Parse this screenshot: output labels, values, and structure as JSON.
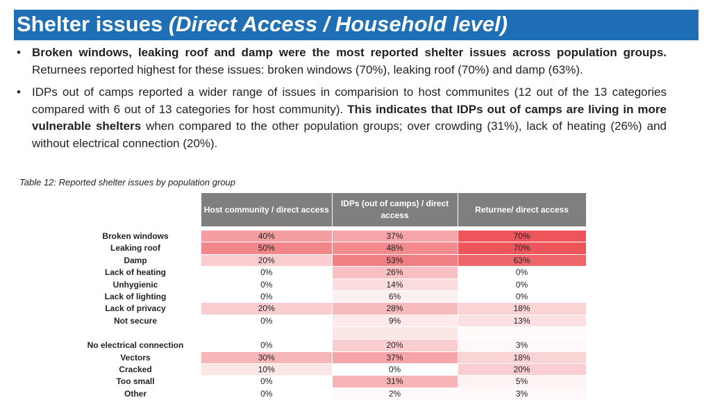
{
  "header": {
    "title_plain": "Shelter issues ",
    "title_italic": "(Direct Access / Household level)"
  },
  "bullets": [
    {
      "bold": "Broken windows, leaking roof and damp were the most reported shelter issues across population groups.",
      "rest": " Returnees reported highest for these issues: broken windows (70%), leaking roof (70%) and damp (63%)."
    },
    {
      "pre": "IDPs out of camps reported a wider range of issues in comparision to host communites (12 out of the 13 categories compared with 6 out of 13 categories for host community). ",
      "bold": "This indicates that IDPs out of camps are living in more vulnerable shelters",
      "post": " when compared to the other population groups; over crowding (31%), lack of heating (26%) and without electrical connection (20%)."
    }
  ],
  "caption": "Table 12: Reported shelter issues by population group",
  "table": {
    "columns": [
      "Host community / direct access",
      "IDPs (out of camps) / direct access",
      "Returnee/ direct access"
    ],
    "rows": [
      {
        "label": "Broken windows",
        "values": [
          "40%",
          "37%",
          "70%"
        ],
        "pct": [
          40,
          37,
          70
        ]
      },
      {
        "label": "Leaking roof",
        "values": [
          "50%",
          "48%",
          "70%"
        ],
        "pct": [
          50,
          48,
          70
        ]
      },
      {
        "label": "Damp",
        "values": [
          "20%",
          "53%",
          "63%"
        ],
        "pct": [
          20,
          53,
          63
        ]
      },
      {
        "label": "Lack of heating",
        "values": [
          "0%",
          "26%",
          "0%"
        ],
        "pct": [
          0,
          26,
          0
        ]
      },
      {
        "label": "Unhygienic",
        "values": [
          "0%",
          "14%",
          "0%"
        ],
        "pct": [
          0,
          14,
          0
        ]
      },
      {
        "label": "Lack of lighting",
        "values": [
          "0%",
          "6%",
          "0%"
        ],
        "pct": [
          0,
          6,
          0
        ]
      },
      {
        "label": "Lack of privacy",
        "values": [
          "20%",
          "28%",
          "18%"
        ],
        "pct": [
          20,
          28,
          18
        ]
      },
      {
        "label": "Not secure",
        "values": [
          "0%",
          "9%",
          "13%"
        ],
        "pct": [
          0,
          9,
          13
        ]
      },
      {
        "label": "",
        "values": [
          "",
          "",
          ""
        ],
        "pct": [
          0,
          20,
          3
        ]
      },
      {
        "label": "No electrical connection",
        "values": [
          "0%",
          "20%",
          "3%"
        ],
        "pct": [
          0,
          20,
          3
        ]
      },
      {
        "label": "Vectors",
        "values": [
          "30%",
          "37%",
          "18%"
        ],
        "pct": [
          30,
          37,
          18
        ]
      },
      {
        "label": "Cracked",
        "values": [
          "10%",
          "0%",
          "20%"
        ],
        "pct": [
          10,
          0,
          20
        ]
      },
      {
        "label": "Too small",
        "values": [
          "0%",
          "31%",
          "5%"
        ],
        "pct": [
          0,
          31,
          5
        ]
      },
      {
        "label": "Other",
        "values": [
          "0%",
          "2%",
          "3%"
        ],
        "pct": [
          0,
          2,
          3
        ]
      }
    ]
  }
}
